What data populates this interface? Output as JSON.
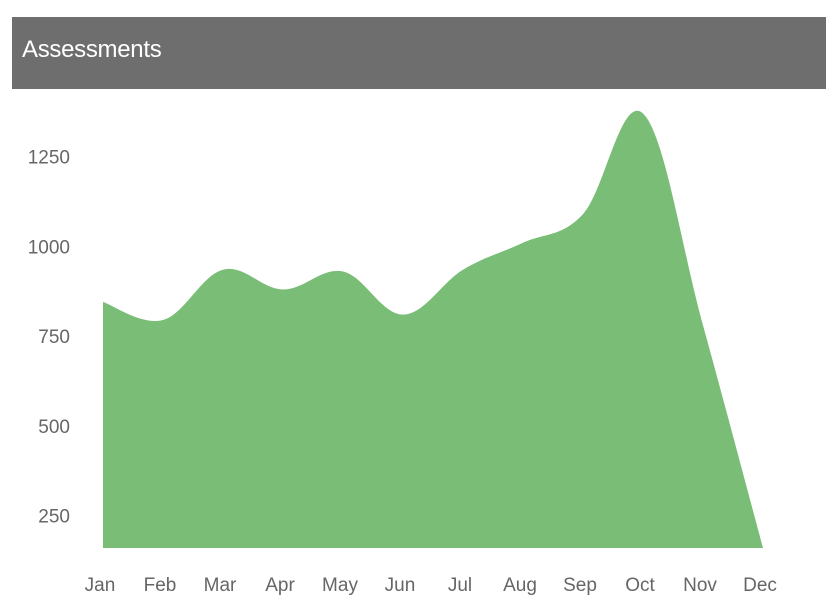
{
  "header": {
    "title": "Assessments"
  },
  "chart_data": {
    "type": "area",
    "title": "",
    "xlabel": "",
    "ylabel": "",
    "categories": [
      "Jan",
      "Feb",
      "Mar",
      "Apr",
      "May",
      "Jun",
      "Jul",
      "Aug",
      "Sep",
      "Oct",
      "Nov",
      "Dec"
    ],
    "series": [
      {
        "values": [
          845,
          795,
          935,
          880,
          930,
          810,
          935,
          1010,
          1090,
          1370,
          780,
          160
        ]
      }
    ],
    "yticks": [
      250,
      500,
      750,
      1000,
      1250
    ],
    "ylim": [
      160,
      1430
    ],
    "grid": false,
    "legend": "none",
    "colors": {
      "area_fill": "#79bd76",
      "tick_text": "#666666",
      "header_bg": "#6e6e6e"
    }
  }
}
